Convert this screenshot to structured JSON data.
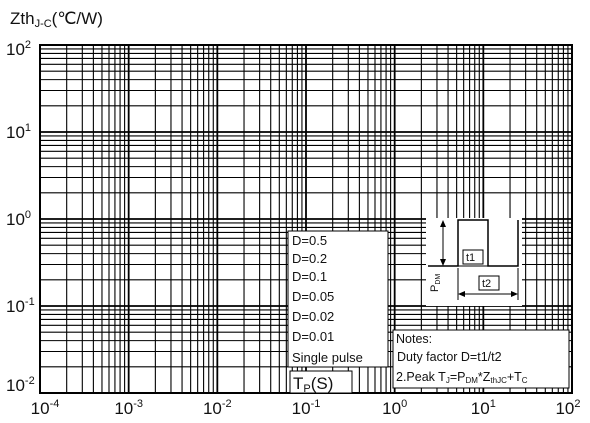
{
  "chart_data": {
    "type": "line",
    "title": "",
    "ylabel": {
      "main": "Zth",
      "sub": "J-C",
      "unit": "(℃/W)"
    },
    "xlabel": {
      "main": "T",
      "sub": "P",
      "unit": "(S)"
    },
    "x_scale": "log",
    "y_scale": "log",
    "xlim": [
      0.0001,
      100
    ],
    "ylim": [
      0.01,
      100
    ],
    "x_ticks": [
      {
        "base": "10",
        "exp": "-4"
      },
      {
        "base": "10",
        "exp": "-3"
      },
      {
        "base": "10",
        "exp": "-2"
      },
      {
        "base": "10",
        "exp": "-1"
      },
      {
        "base": "10",
        "exp": "0"
      },
      {
        "base": "10",
        "exp": "1"
      },
      {
        "base": "10",
        "exp": "2"
      }
    ],
    "y_ticks": [
      {
        "base": "10",
        "exp": "-2"
      },
      {
        "base": "10",
        "exp": "-1"
      },
      {
        "base": "10",
        "exp": "0"
      },
      {
        "base": "10",
        "exp": "1"
      },
      {
        "base": "10",
        "exp": "2"
      }
    ],
    "grid": true,
    "legend_entries": [
      "D=0.5",
      "D=0.2",
      "D=0.1",
      "D=0.05",
      "D=0.02",
      "D=0.01",
      "Single pulse"
    ],
    "series": [],
    "notes": {
      "heading": "Notes:",
      "line1": "Duty factor D=t1/t2",
      "line2": {
        "a": "2.Peak T",
        "a_sub": "J",
        "b": "=P",
        "b_sub": "DM",
        "c": "*Z",
        "c_sub": "thJC",
        "d": "+T",
        "d_sub": "C"
      }
    },
    "inset": {
      "pdm": {
        "main": "P",
        "sub": "DM"
      },
      "t1": "t1",
      "t2": "t2"
    }
  }
}
